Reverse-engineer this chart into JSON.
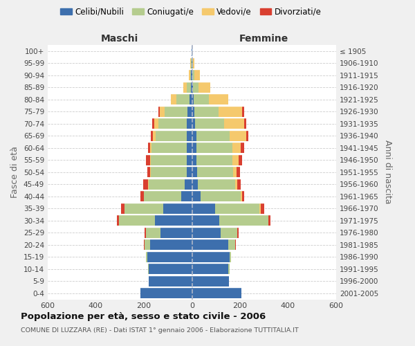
{
  "age_groups": [
    "0-4",
    "5-9",
    "10-14",
    "15-19",
    "20-24",
    "25-29",
    "30-34",
    "35-39",
    "40-44",
    "45-49",
    "50-54",
    "55-59",
    "60-64",
    "65-69",
    "70-74",
    "75-79",
    "80-84",
    "85-89",
    "90-94",
    "95-99",
    "100+"
  ],
  "birth_years": [
    "2001-2005",
    "1996-2000",
    "1991-1995",
    "1986-1990",
    "1981-1985",
    "1976-1980",
    "1971-1975",
    "1966-1970",
    "1961-1965",
    "1956-1960",
    "1951-1955",
    "1946-1950",
    "1941-1945",
    "1936-1940",
    "1931-1935",
    "1926-1930",
    "1921-1925",
    "1916-1920",
    "1911-1915",
    "1906-1910",
    "≤ 1905"
  ],
  "maschi": {
    "celibi": [
      215,
      180,
      180,
      185,
      175,
      130,
      155,
      120,
      45,
      30,
      22,
      22,
      22,
      22,
      22,
      18,
      10,
      5,
      3,
      2,
      2
    ],
    "coniugati": [
      0,
      0,
      4,
      5,
      22,
      62,
      148,
      162,
      155,
      150,
      148,
      148,
      145,
      130,
      118,
      95,
      55,
      18,
      5,
      2,
      0
    ],
    "vedovi": [
      0,
      0,
      0,
      0,
      0,
      0,
      0,
      0,
      0,
      4,
      4,
      5,
      6,
      12,
      18,
      22,
      22,
      12,
      5,
      2,
      0
    ],
    "divorziati": [
      0,
      0,
      0,
      0,
      2,
      5,
      8,
      12,
      15,
      20,
      12,
      15,
      10,
      8,
      8,
      5,
      0,
      0,
      0,
      0,
      0
    ]
  },
  "femmine": {
    "nubili": [
      205,
      155,
      152,
      158,
      150,
      120,
      115,
      95,
      35,
      25,
      22,
      20,
      20,
      18,
      12,
      10,
      8,
      5,
      2,
      2,
      2
    ],
    "coniugate": [
      0,
      0,
      4,
      5,
      30,
      68,
      202,
      185,
      168,
      155,
      150,
      148,
      148,
      140,
      122,
      100,
      62,
      22,
      8,
      2,
      0
    ],
    "vedove": [
      0,
      0,
      0,
      0,
      0,
      0,
      0,
      5,
      5,
      8,
      15,
      26,
      36,
      68,
      82,
      98,
      82,
      48,
      22,
      5,
      0
    ],
    "divorziate": [
      0,
      0,
      0,
      0,
      2,
      5,
      10,
      15,
      10,
      15,
      12,
      15,
      12,
      8,
      10,
      8,
      0,
      0,
      0,
      0,
      0
    ]
  },
  "colors": {
    "celibi": "#3d6fad",
    "coniugati": "#b5cc8e",
    "vedovi": "#f5c96d",
    "divorziati": "#d93f30"
  },
  "xlim": 600,
  "xticks": [
    -600,
    -400,
    -200,
    0,
    200,
    400,
    600
  ],
  "title": "Popolazione per età, sesso e stato civile - 2006",
  "subtitle": "COMUNE DI LUZZARA (RE) - Dati ISTAT 1° gennaio 2006 - Elaborazione TUTTITALIA.IT",
  "ylabel": "Fasce di età",
  "ylabel_right": "Anni di nascita",
  "xlabel_left": "Maschi",
  "xlabel_right": "Femmine",
  "legend_labels": [
    "Celibi/Nubili",
    "Coniugati/e",
    "Vedovi/e",
    "Divorziati/e"
  ],
  "bg_color": "#f0f0f0",
  "plot_bg_color": "#ffffff"
}
